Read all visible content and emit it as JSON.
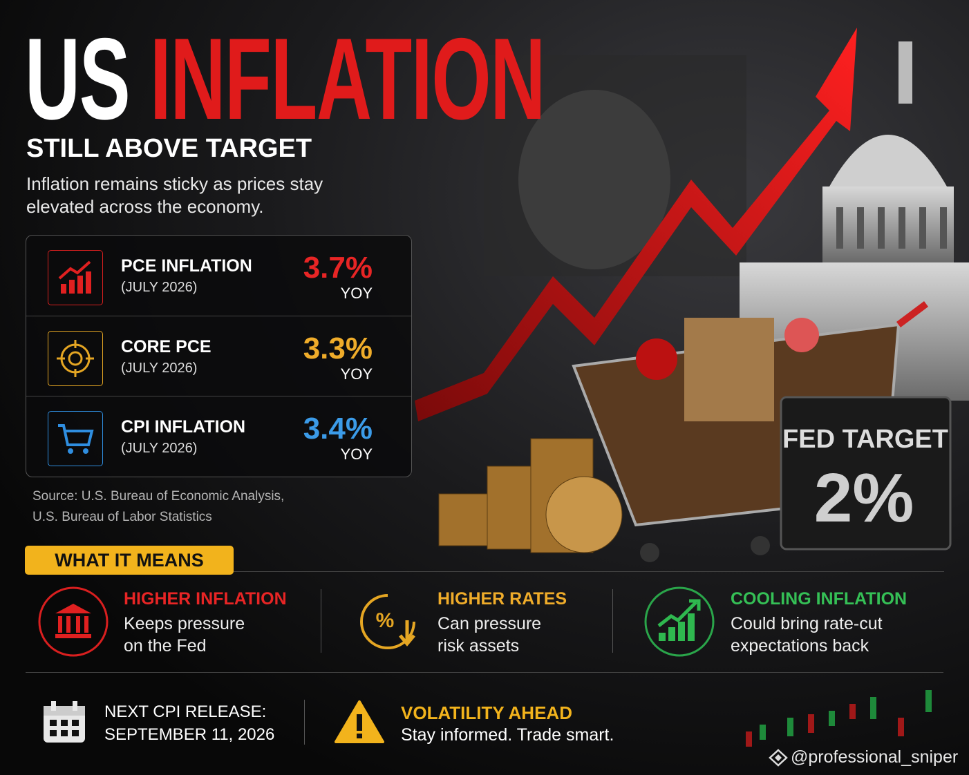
{
  "header": {
    "title_part1": "US",
    "title_part2": "INFLATION",
    "subtitle": "STILL ABOVE TARGET",
    "description": "Inflation remains sticky as prices stay elevated across the economy."
  },
  "metrics": [
    {
      "label": "PCE INFLATION",
      "period": "(JULY 2026)",
      "value": "3.7%",
      "unit": "YOY"
    },
    {
      "label": "CORE PCE",
      "period": "(JULY 2026)",
      "value": "3.3%",
      "unit": "YOY"
    },
    {
      "label": "CPI INFLATION",
      "period": "(JULY 2026)",
      "value": "3.4%",
      "unit": "YOY"
    }
  ],
  "source": [
    "Source: U.S. Bureau of Economic Analysis,",
    "U.S. Bureau of Labor Statistics"
  ],
  "fed_target": {
    "label": "FED TARGET",
    "value": "2%"
  },
  "what_it_means": {
    "heading": "WHAT IT MEANS",
    "items": [
      {
        "title": "HIGHER INFLATION",
        "text": "Keeps pressure on the Fed"
      },
      {
        "title": "HIGHER RATES",
        "text": "Can pressure risk assets"
      },
      {
        "title": "COOLING INFLATION",
        "text": "Could bring rate-cut expectations back"
      }
    ]
  },
  "footer": {
    "release_label": "NEXT CPI RELEASE:",
    "release_date": "SEPTEMBER 11, 2026",
    "alert_title": "VOLATILITY AHEAD",
    "alert_text": "Stay informed. Trade smart.",
    "handle": "@professional_sniper"
  }
}
